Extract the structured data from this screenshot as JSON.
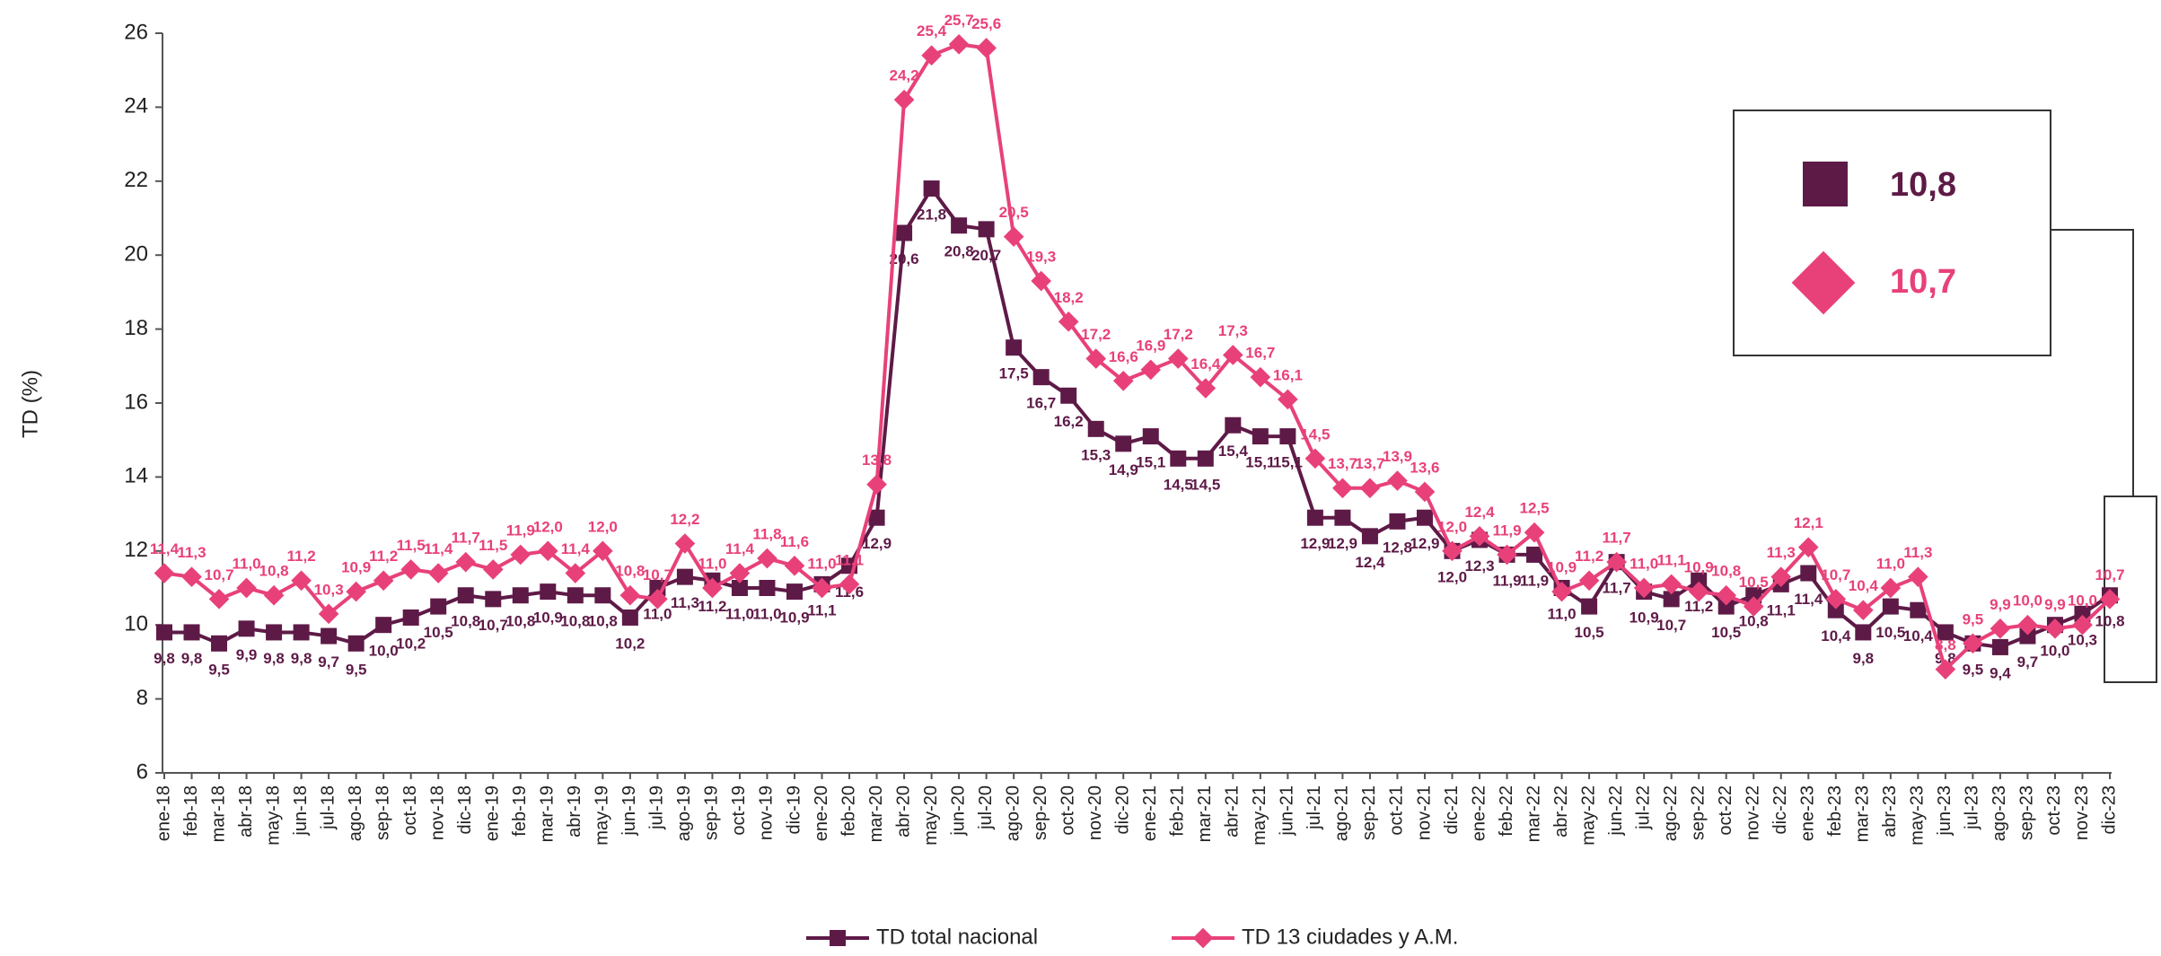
{
  "chart_data": {
    "type": "line",
    "y_label": "TD (%)",
    "categories": [
      "ene-18",
      "feb-18",
      "mar-18",
      "abr-18",
      "may-18",
      "jun-18",
      "jul-18",
      "ago-18",
      "sep-18",
      "oct-18",
      "nov-18",
      "dic-18",
      "ene-19",
      "feb-19",
      "mar-19",
      "abr-19",
      "may-19",
      "jun-19",
      "jul-19",
      "ago-19",
      "sep-19",
      "oct-19",
      "nov-19",
      "dic-19",
      "ene-20",
      "feb-20",
      "mar-20",
      "abr-20",
      "may-20",
      "jun-20",
      "jul-20",
      "ago-20",
      "sep-20",
      "oct-20",
      "nov-20",
      "dic-20",
      "ene-21",
      "feb-21",
      "mar-21",
      "abr-21",
      "may-21",
      "jun-21",
      "jul-21",
      "ago-21",
      "sep-21",
      "oct-21",
      "nov-21",
      "dic-21",
      "ene-22",
      "feb-22",
      "mar-22",
      "abr-22",
      "may-22",
      "jun-22",
      "jul-22",
      "ago-22",
      "sep-22",
      "oct-22",
      "nov-22",
      "dic-22",
      "ene-23",
      "feb-23",
      "mar-23",
      "abr-23",
      "may-23",
      "jun-23",
      "jul-23",
      "ago-23",
      "sep-23",
      "oct-23",
      "nov-23",
      "dic-23"
    ],
    "series": [
      {
        "name": "TD total nacional",
        "color": "#5e1a47",
        "marker": "square",
        "values": [
          9.8,
          9.8,
          9.5,
          9.9,
          9.8,
          9.8,
          9.7,
          9.5,
          10.0,
          10.2,
          10.5,
          10.8,
          10.7,
          10.8,
          10.9,
          10.8,
          10.8,
          10.2,
          11.0,
          11.3,
          11.2,
          11.0,
          11.0,
          10.9,
          11.1,
          11.6,
          12.9,
          20.6,
          21.8,
          20.8,
          20.7,
          17.5,
          16.7,
          16.2,
          15.3,
          14.9,
          15.1,
          14.5,
          14.5,
          15.4,
          15.1,
          15.1,
          12.9,
          12.9,
          12.4,
          12.8,
          12.9,
          12.0,
          12.3,
          11.9,
          11.9,
          11.0,
          10.5,
          11.7,
          10.9,
          10.7,
          11.2,
          10.5,
          10.8,
          11.1,
          11.4,
          10.4,
          9.8,
          10.5,
          10.4,
          9.8,
          9.5,
          9.4,
          9.7,
          10.0,
          10.3,
          10.8
        ],
        "value_labels": [
          "9,8",
          "9,8",
          "9,5",
          "9,9",
          "9,8",
          "9,8",
          "9,7",
          "9,5",
          "10,0",
          "10,2",
          "10,5",
          "10,8",
          "10,7",
          "10,8",
          "10,9",
          "10,8",
          "10,8",
          "10,2",
          "11,0",
          "11,3",
          "11,2",
          "11,0",
          "11,0",
          "10,9",
          "11,1",
          "11,6",
          "12,9",
          "20,6",
          "21,8",
          "20,8",
          "20,7",
          "17,5",
          "16,7",
          "16,2",
          "15,3",
          "14,9",
          "15,1",
          "14,5",
          "14,5",
          "15,4",
          "15,1",
          "15,1",
          "12,9",
          "12,9",
          "12,4",
          "12,8",
          "12,9",
          "12,0",
          "12,3",
          "11,9",
          "11,9",
          "11,0",
          "10,5",
          "11,7",
          "10,9",
          "10,7",
          "11,2",
          "10,5",
          "10,8",
          "11,1",
          "11,4",
          "10,4",
          "9,8",
          "10,5",
          "10,4",
          "9,8",
          "9,5",
          "9,4",
          "9,7",
          "10,0",
          "10,3",
          "10,8"
        ]
      },
      {
        "name": "TD 13 ciudades y A.M.",
        "color": "#e8417a",
        "marker": "diamond",
        "values": [
          11.4,
          11.3,
          10.7,
          11.0,
          10.8,
          11.2,
          10.3,
          10.9,
          11.2,
          11.5,
          11.4,
          11.7,
          11.5,
          11.9,
          12.0,
          11.4,
          12.0,
          10.8,
          10.7,
          12.2,
          11.0,
          11.4,
          11.8,
          11.6,
          11.0,
          11.1,
          13.8,
          24.2,
          25.4,
          25.7,
          25.6,
          20.5,
          19.3,
          18.2,
          17.2,
          16.6,
          16.9,
          17.2,
          16.4,
          17.3,
          16.7,
          16.1,
          14.5,
          13.7,
          13.7,
          13.9,
          13.6,
          12.0,
          12.4,
          11.9,
          12.5,
          10.9,
          11.2,
          11.7,
          11.0,
          11.1,
          10.9,
          10.8,
          10.5,
          11.3,
          12.1,
          10.7,
          10.4,
          11.0,
          11.3,
          8.8,
          9.5,
          9.9,
          10.0,
          9.9,
          10.0,
          10.7
        ],
        "value_labels": [
          "11,4",
          "11,3",
          "10,7",
          "11,0",
          "10,8",
          "11,2",
          "10,3",
          "10,9",
          "11,2",
          "11,5",
          "11,4",
          "11,7",
          "11,5",
          "11,9",
          "12,0",
          "11,4",
          "12,0",
          "10,8",
          "10,7",
          "12,2",
          "11,0",
          "11,4",
          "11,8",
          "11,6",
          "11,0",
          "11,1",
          "13,8",
          "24,2",
          "25,4",
          "25,7",
          "25,6",
          "20,5",
          "19,3",
          "18,2",
          "17,2",
          "16,6",
          "16,9",
          "17,2",
          "16,4",
          "17,3",
          "16,7",
          "16,1",
          "14,5",
          "13,7",
          "13,7",
          "13,9",
          "13,6",
          "12,0",
          "12,4",
          "11,9",
          "12,5",
          "10,9",
          "11,2",
          "11,7",
          "11,0",
          "11,1",
          "10,9",
          "10,8",
          "10,5",
          "11,3",
          "12,1",
          "10,7",
          "10,4",
          "11,0",
          "11,3",
          "8,8",
          "9,5",
          "9,9",
          "10,0",
          "9,9",
          "10,0",
          "10,7"
        ]
      }
    ],
    "ylim": [
      6,
      26
    ],
    "yticks": [
      6,
      8,
      10,
      12,
      14,
      16,
      18,
      20,
      22,
      24,
      26
    ],
    "grid": false,
    "legend": "bottom"
  }
}
